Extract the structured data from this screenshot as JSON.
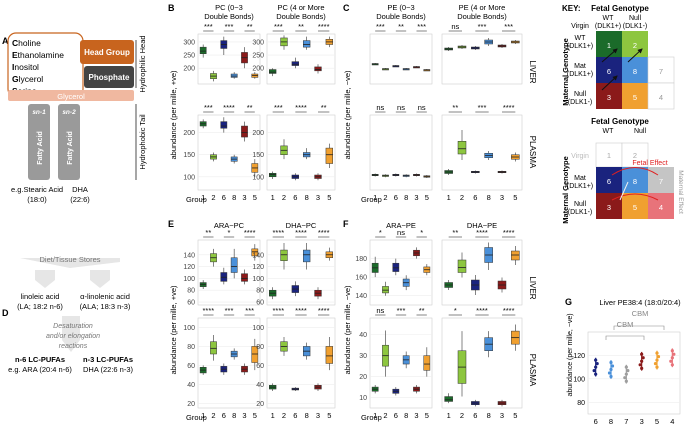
{
  "colors": {
    "g1": "#1b6b2a",
    "g2": "#8dc63f",
    "g6": "#1a237e",
    "g8": "#4a90d9",
    "g3": "#8b1a1a",
    "g5": "#f0a030",
    "g7": "#9e9e9e",
    "g4": "#e8737a",
    "head": "#c8641e",
    "phosphate": "#444444",
    "glycerol": "#f0b8a0",
    "tail": "#9a9a9a"
  },
  "panelA": {
    "letter": "A",
    "head_words": [
      {
        "cap": "C",
        "rest": "holine"
      },
      {
        "cap": "E",
        "rest": "thanolamine"
      },
      {
        "cap": "I",
        "rest": "nositol"
      },
      {
        "cap": "G",
        "rest": "lycerol"
      },
      {
        "cap": "S",
        "rest": "erine"
      }
    ],
    "head_group": "Head Group",
    "phosphate": "Phosphate",
    "glycerol": "Glycerol",
    "sn1": "sn-1",
    "sn2": "sn-2",
    "fatty_acid": "Fatty Acid",
    "hydrophilic": "Hydrophilic Head",
    "hydrophobic": "Hydrophobic Tail",
    "ex1": "e.g.Stearic Acid",
    "ex1b": "(18:0)",
    "ex2": "DHA",
    "ex2b": "(22:6)"
  },
  "panelD": {
    "letter": "D",
    "diet": "Diet/Tissue Stores",
    "la": "linoleic acid",
    "la2": "(LA; 18:2 n-6)",
    "ala": "α-linolenic acid",
    "ala2": "(ALA; 18:3 n-3)",
    "desat1": "Desaturation",
    "desat2": "and/or elongation",
    "desat3": "reactions",
    "n6": "n-6 LC-PUFAs",
    "n6b": "e.g. ARA (20:4 n-6)",
    "n3": "n-3 LC-PUFAs",
    "n3b": "DHA (22:6 n-3)"
  },
  "panel_letters": {
    "B": "B",
    "C": "C",
    "E": "E",
    "F": "F",
    "G": "G"
  },
  "boxplots": {
    "group_label": "Group",
    "groups": [
      "1",
      "2",
      "6",
      "8",
      "3",
      "5"
    ],
    "ylabel_pos": "abundance (per mille, +ve)",
    "ylabel_neg": "abundance (per mille, −ve)",
    "ylabel_pos2": "abundance (per mille, +ve)",
    "ylabel_neg2": "abundance (per mille, −ve)",
    "row_liver": "LIVER",
    "row_plasma": "PLASMA",
    "panels": [
      {
        "id": "B1",
        "title1": "PC (0−3",
        "title2": "Double Bonds)",
        "ticks": [
          "200",
          "250",
          "300"
        ],
        "ymin": 140,
        "ymax": 330,
        "tickvals": [
          200,
          250,
          300
        ],
        "sig": [
          "***",
          "***",
          "**"
        ],
        "boxes": [
          [
            240,
            255,
            265,
            280,
            290
          ],
          [
            150,
            160,
            170,
            180,
            190
          ],
          [
            250,
            275,
            290,
            305,
            320
          ],
          [
            160,
            165,
            170,
            178,
            185
          ],
          [
            200,
            220,
            240,
            260,
            280
          ],
          [
            160,
            165,
            172,
            178,
            185
          ]
        ]
      },
      {
        "id": "B2",
        "title1": "PC (4 or More",
        "title2": "Double Bonds)",
        "ticks": [
          "200",
          "250",
          "300"
        ],
        "ymin": 140,
        "ymax": 330,
        "tickvals": [
          200,
          250,
          300
        ],
        "sig": [
          "***",
          "**",
          "****"
        ],
        "boxes": [
          [
            170,
            180,
            185,
            195,
            200
          ],
          [
            270,
            285,
            300,
            315,
            325
          ],
          [
            200,
            210,
            215,
            225,
            240
          ],
          [
            270,
            280,
            290,
            305,
            320
          ],
          [
            180,
            190,
            195,
            205,
            215
          ],
          [
            280,
            290,
            300,
            310,
            320
          ]
        ]
      },
      {
        "id": "B3",
        "title1": "",
        "title2": "",
        "ticks": [
          "100",
          "150",
          "200"
        ],
        "ymin": 70,
        "ymax": 240,
        "tickvals": [
          100,
          150,
          200
        ],
        "sig": [
          "***",
          "****",
          "**"
        ],
        "boxes": [
          [
            210,
            215,
            220,
            225,
            230
          ],
          [
            135,
            140,
            145,
            150,
            155
          ],
          [
            200,
            210,
            215,
            225,
            235
          ],
          [
            130,
            135,
            140,
            145,
            150
          ],
          [
            180,
            190,
            200,
            215,
            225
          ],
          [
            100,
            110,
            120,
            130,
            140
          ]
        ]
      },
      {
        "id": "B4",
        "title1": "",
        "title2": "",
        "ticks": [
          "100",
          "150",
          "200"
        ],
        "ymin": 70,
        "ymax": 240,
        "tickvals": [
          100,
          150,
          200
        ],
        "sig": [
          "***",
          "****",
          "**"
        ],
        "boxes": [
          [
            95,
            100,
            105,
            108,
            112
          ],
          [
            140,
            150,
            160,
            170,
            185
          ],
          [
            92,
            96,
            100,
            104,
            108
          ],
          [
            140,
            145,
            150,
            155,
            165
          ],
          [
            92,
            96,
            100,
            104,
            108
          ],
          [
            120,
            130,
            150,
            165,
            175
          ]
        ]
      },
      {
        "id": "C1",
        "title1": "PE (0−3",
        "title2": "Double Bonds)",
        "ticks": [
          "",
          "",
          ""
        ],
        "ymin": 0,
        "ymax": 100,
        "tickvals": [],
        "sig": [
          "***",
          "**",
          "***"
        ],
        "boxes": [
          [
            38,
            39,
            40,
            41,
            42
          ],
          [
            28,
            29,
            30,
            31,
            32
          ],
          [
            34,
            35,
            36,
            37,
            38
          ],
          [
            28,
            29,
            30,
            31,
            32
          ],
          [
            32,
            33,
            34,
            35,
            36
          ],
          [
            26,
            27,
            28,
            29,
            30
          ]
        ]
      },
      {
        "id": "C2",
        "title1": "PE (4 or More",
        "title2": "Double Bonds)",
        "ticks": [
          "",
          "",
          ""
        ],
        "ymin": 0,
        "ymax": 100,
        "tickvals": [],
        "sig": [
          "ns",
          "***",
          "***"
        ],
        "boxes": [
          [
            66,
            68,
            70,
            72,
            74
          ],
          [
            70,
            72,
            74,
            76,
            78
          ],
          [
            68,
            70,
            72,
            74,
            76
          ],
          [
            76,
            80,
            84,
            88,
            92
          ],
          [
            72,
            74,
            76,
            78,
            80
          ],
          [
            80,
            82,
            84,
            86,
            88
          ]
        ]
      },
      {
        "id": "C3",
        "title1": "",
        "title2": "",
        "ticks": [
          "",
          "",
          ""
        ],
        "ymin": 0,
        "ymax": 100,
        "tickvals": [],
        "sig": [
          "ns",
          "ns",
          "ns"
        ],
        "boxes": [
          [
            18,
            19,
            20,
            21,
            22
          ],
          [
            17,
            18,
            19,
            20,
            21
          ],
          [
            18,
            19,
            20,
            21,
            22
          ],
          [
            17,
            18,
            19,
            20,
            21
          ],
          [
            18,
            19,
            20,
            21,
            22
          ],
          [
            16,
            17,
            18,
            19,
            20
          ]
        ]
      },
      {
        "id": "C4",
        "title1": "",
        "title2": "",
        "ticks": [
          "",
          "",
          ""
        ],
        "ymin": 0,
        "ymax": 100,
        "tickvals": [],
        "sig": [
          "**",
          "***",
          "****"
        ],
        "boxes": [
          [
            20,
            22,
            24,
            26,
            28
          ],
          [
            40,
            48,
            55,
            65,
            80
          ],
          [
            22,
            23,
            24,
            25,
            26
          ],
          [
            40,
            43,
            46,
            49,
            52
          ],
          [
            22,
            23,
            24,
            25,
            26
          ],
          [
            38,
            41,
            44,
            47,
            50
          ]
        ]
      },
      {
        "id": "E1",
        "title1": "ARA−PC",
        "title2": "",
        "ticks": [
          "60",
          "80",
          "100",
          "120",
          "140"
        ],
        "ymin": 55,
        "ymax": 165,
        "tickvals": [
          60,
          80,
          100,
          120,
          140
        ],
        "sig": [
          "**",
          "*",
          "****"
        ],
        "boxes": [
          [
            82,
            86,
            90,
            93,
            97
          ],
          [
            120,
            128,
            135,
            142,
            150
          ],
          [
            90,
            95,
            102,
            110,
            118
          ],
          [
            100,
            110,
            120,
            135,
            150
          ],
          [
            90,
            95,
            100,
            108,
            115
          ],
          [
            130,
            138,
            145,
            150,
            158
          ]
        ]
      },
      {
        "id": "E2",
        "title1": "DHA−PC",
        "title2": "",
        "ticks": [
          "60",
          "80",
          "100",
          "120",
          "140"
        ],
        "ymin": 55,
        "ymax": 165,
        "tickvals": [
          60,
          80,
          100,
          120,
          140
        ],
        "sig": [
          "****",
          "****",
          "****"
        ],
        "boxes": [
          [
            65,
            70,
            75,
            80,
            85
          ],
          [
            115,
            130,
            140,
            148,
            160
          ],
          [
            70,
            76,
            82,
            88,
            95
          ],
          [
            115,
            128,
            140,
            148,
            160
          ],
          [
            65,
            70,
            75,
            80,
            85
          ],
          [
            130,
            135,
            140,
            145,
            152
          ]
        ]
      },
      {
        "id": "E3",
        "title1": "",
        "title2": "",
        "ticks": [
          "20",
          "40",
          "60",
          "80",
          "100"
        ],
        "ymin": 15,
        "ymax": 110,
        "tickvals": [
          20,
          40,
          60,
          80,
          100
        ],
        "sig": [
          "****",
          "***",
          "***"
        ],
        "boxes": [
          [
            50,
            52,
            55,
            58,
            60
          ],
          [
            65,
            72,
            78,
            85,
            92
          ],
          [
            50,
            53,
            56,
            59,
            62
          ],
          [
            66,
            69,
            72,
            75,
            78
          ],
          [
            50,
            53,
            56,
            59,
            62
          ],
          [
            55,
            63,
            72,
            80,
            88
          ]
        ]
      },
      {
        "id": "E4",
        "title1": "",
        "title2": "",
        "ticks": [
          "20",
          "40",
          "60",
          "80",
          "100"
        ],
        "ymin": 15,
        "ymax": 110,
        "tickvals": [
          20,
          40,
          60,
          80,
          100
        ],
        "sig": [
          "****",
          "****",
          "****"
        ],
        "boxes": [
          [
            33,
            35,
            37,
            39,
            41
          ],
          [
            70,
            75,
            80,
            85,
            90
          ],
          [
            33,
            34,
            35,
            36,
            37
          ],
          [
            66,
            70,
            75,
            80,
            84
          ],
          [
            33,
            35,
            37,
            39,
            41
          ],
          [
            55,
            62,
            70,
            80,
            90
          ]
        ]
      },
      {
        "id": "F1",
        "title1": "ARA−PE",
        "title2": "",
        "ticks": [
          "140",
          "160",
          "180"
        ],
        "ymin": 130,
        "ymax": 200,
        "tickvals": [
          140,
          160,
          180
        ],
        "sig": [
          "*",
          "ns",
          "*"
        ],
        "boxes": [
          [
            160,
            165,
            170,
            175,
            182
          ],
          [
            140,
            143,
            146,
            150,
            155
          ],
          [
            162,
            166,
            170,
            175,
            180
          ],
          [
            146,
            150,
            154,
            158,
            162
          ],
          [
            180,
            183,
            186,
            189,
            192
          ],
          [
            162,
            165,
            168,
            171,
            174
          ]
        ]
      },
      {
        "id": "F2",
        "title1": "DHA−PE",
        "title2": "",
        "ticks": [
          "",
          "",
          ""
        ],
        "ymin": 130,
        "ymax": 260,
        "tickvals": [],
        "sig": [
          "**",
          "****",
          "****"
        ],
        "boxes": [
          [
            160,
            165,
            170,
            175,
            180
          ],
          [
            185,
            195,
            205,
            220,
            235
          ],
          [
            150,
            160,
            170,
            180,
            190
          ],
          [
            200,
            215,
            230,
            245,
            255
          ],
          [
            155,
            162,
            170,
            178,
            185
          ],
          [
            210,
            220,
            230,
            238,
            248
          ]
        ]
      },
      {
        "id": "F3",
        "title1": "",
        "title2": "",
        "ticks": [
          "10",
          "20",
          "30",
          "40"
        ],
        "ymin": 5,
        "ymax": 48,
        "tickvals": [
          10,
          20,
          30,
          40
        ],
        "sig": [
          "ns",
          "***",
          "**"
        ],
        "boxes": [
          [
            12,
            13,
            14,
            15,
            16
          ],
          [
            20,
            25,
            30,
            35,
            42
          ],
          [
            11,
            12,
            13,
            14,
            15
          ],
          [
            24,
            26,
            28,
            30,
            32
          ],
          [
            12,
            13,
            14,
            15,
            16
          ],
          [
            20,
            23,
            26,
            30,
            34
          ]
        ]
      },
      {
        "id": "F4",
        "title1": "",
        "title2": "",
        "ticks": [
          "",
          "",
          "",
          ""
        ],
        "ymin": 5,
        "ymax": 60,
        "tickvals": [],
        "sig": [
          "*",
          "****",
          "****"
        ],
        "boxes": [
          [
            8,
            9,
            10,
            12,
            14
          ],
          [
            12,
            20,
            30,
            40,
            52
          ],
          [
            6,
            7,
            8,
            9,
            10
          ],
          [
            36,
            40,
            44,
            48,
            52
          ],
          [
            6,
            7,
            8,
            9,
            10
          ],
          [
            40,
            44,
            48,
            52,
            56
          ]
        ]
      }
    ]
  },
  "key": {
    "title": "KEY:",
    "fetal_genotype": "Fetal Genotype",
    "maternal_genotype": "Maternal Genotype",
    "wt": "WT",
    "wt2": "(DLK1+)",
    "null": "Null",
    "null2": "(DLK1-)",
    "virgin": "Virgin",
    "mat": "Mat",
    "row_wt": "WT",
    "row_wt2": "(DLK1+)",
    "row_mat": "Mat",
    "row_mat2": "(DLK1+)",
    "row_null": "Null",
    "row_null2": "(DLK1-)",
    "cells_top": [
      "1",
      "2",
      "6",
      "8",
      "7",
      "3",
      "5",
      "4"
    ],
    "fetal_effect": "Fetal Effect",
    "maternal_effect": "Maternal Effect"
  },
  "panelG": {
    "title": "Liver PE38:4 (18:0/20:4)",
    "cbm1": "CBM",
    "cbm2": "CBM",
    "groups": [
      "6",
      "8",
      "7",
      "3",
      "5",
      "4"
    ],
    "ylabel": "abundance (per mille, −ve)",
    "ticks": [
      "80",
      "100",
      "120"
    ],
    "ymin": 70,
    "ymax": 140,
    "tickvals": [
      80,
      100,
      120
    ],
    "means": [
      110,
      108,
      104,
      115,
      116,
      118
    ]
  }
}
